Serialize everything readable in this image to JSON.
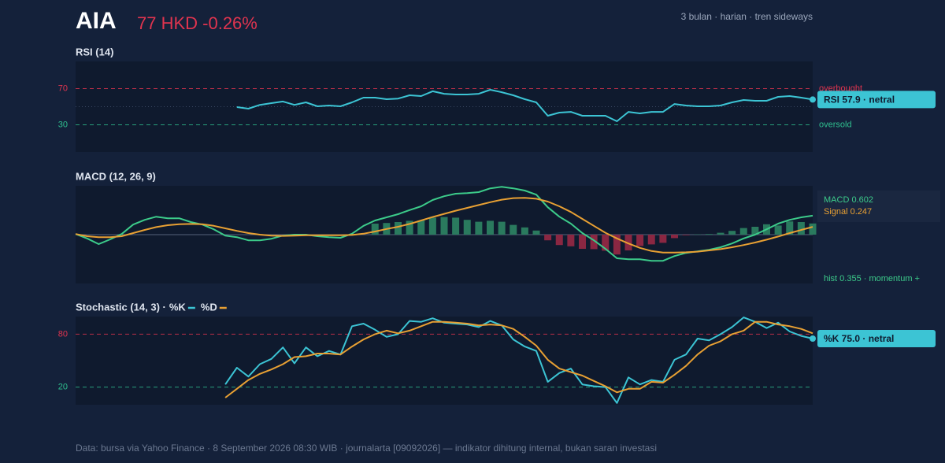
{
  "header": {
    "ticker": "AIA",
    "quote": "77 HKD -0.26%",
    "subtitle": "3 bulan · harian · tren sideways"
  },
  "chart_data": [
    {
      "type": "line",
      "title": "RSI (14)",
      "ylim": [
        0,
        100
      ],
      "yticks": [
        30,
        70
      ],
      "midline": 50,
      "reference_lines": [
        {
          "value": 70,
          "label": "overbought",
          "color": "#e0344f"
        },
        {
          "value": 30,
          "label": "oversold",
          "color": "#2fbf8f"
        }
      ],
      "series": [
        {
          "color": "#3cc4d4",
          "values": [
            null,
            null,
            null,
            null,
            null,
            null,
            null,
            null,
            null,
            null,
            null,
            null,
            null,
            null,
            49.6,
            47.8,
            52,
            53.9,
            55.7,
            52,
            54.8,
            50.4,
            51.3,
            50.4,
            54.8,
            60,
            60,
            58.3,
            59,
            62.6,
            61.7,
            67,
            64.3,
            63.5,
            63.5,
            64.3,
            68.7,
            66,
            62.6,
            58.3,
            54.8,
            40,
            43.5,
            44.3,
            40,
            40,
            40,
            33.9,
            44.3,
            42.6,
            44.3,
            44.3,
            53,
            51.3,
            50.4,
            50.4,
            51.3,
            54.8,
            57.4,
            56.5,
            56.5,
            60.9,
            61.7,
            60,
            57.9
          ]
        }
      ],
      "badge": "RSI 57.9 · netral"
    },
    {
      "type": "line",
      "title": "MACD (12, 26, 9)",
      "ylim": [
        -1.55,
        1.55
      ],
      "midline": 0,
      "series": [
        {
          "name": "MACD",
          "color": "#3ccb8a",
          "values": [
            0.02,
            -0.12,
            -0.3,
            -0.15,
            0.02,
            0.32,
            0.47,
            0.57,
            0.52,
            0.52,
            0.4,
            0.32,
            0.17,
            -0.03,
            -0.08,
            -0.18,
            -0.18,
            -0.13,
            -0.03,
            0,
            0,
            -0.05,
            -0.08,
            -0.1,
            0.03,
            0.28,
            0.45,
            0.55,
            0.65,
            0.78,
            0.9,
            1.1,
            1.22,
            1.3,
            1.32,
            1.35,
            1.47,
            1.52,
            1.47,
            1.4,
            1.27,
            0.87,
            0.57,
            0.35,
            0.05,
            -0.18,
            -0.45,
            -0.75,
            -0.78,
            -0.78,
            -0.83,
            -0.83,
            -0.68,
            -0.58,
            -0.53,
            -0.48,
            -0.4,
            -0.28,
            -0.12,
            0,
            0.17,
            0.35,
            0.47,
            0.55,
            0.602
          ]
        },
        {
          "name": "Signal",
          "color": "#e8a033",
          "values": [
            0.02,
            -0.05,
            -0.08,
            -0.08,
            -0.05,
            0.05,
            0.15,
            0.24,
            0.3,
            0.33,
            0.34,
            0.33,
            0.28,
            0.2,
            0.12,
            0.05,
            0.0,
            -0.03,
            -0.04,
            -0.03,
            -0.02,
            -0.02,
            -0.02,
            -0.02,
            -0.01,
            0.03,
            0.1,
            0.18,
            0.25,
            0.34,
            0.45,
            0.56,
            0.66,
            0.76,
            0.85,
            0.94,
            1.03,
            1.11,
            1.16,
            1.17,
            1.14,
            1.05,
            0.9,
            0.72,
            0.5,
            0.28,
            0.06,
            -0.12,
            -0.28,
            -0.42,
            -0.52,
            -0.57,
            -0.57,
            -0.56,
            -0.54,
            -0.5,
            -0.46,
            -0.4,
            -0.33,
            -0.25,
            -0.16,
            -0.06,
            0.05,
            0.15,
            0.247
          ]
        }
      ],
      "histogram": {
        "positive_color": "#2a7a5e",
        "negative_color": "#8a2742",
        "values": [
          null,
          null,
          null,
          null,
          null,
          null,
          null,
          null,
          null,
          null,
          null,
          null,
          null,
          null,
          null,
          null,
          null,
          null,
          null,
          null,
          null,
          null,
          null,
          null,
          null,
          null,
          0.35,
          0.37,
          0.4,
          0.44,
          0.45,
          0.54,
          0.56,
          0.54,
          0.47,
          0.41,
          0.44,
          0.41,
          0.31,
          0.23,
          0.13,
          -0.18,
          -0.33,
          -0.37,
          -0.45,
          -0.46,
          -0.51,
          -0.63,
          -0.5,
          -0.36,
          -0.31,
          -0.26,
          -0.11,
          -0.02,
          0.01,
          0.02,
          0.06,
          0.12,
          0.21,
          0.25,
          0.33,
          0.29,
          0.42,
          0.4,
          0.355
        ]
      },
      "legend_labels": [
        "MACD 0.602",
        "Signal 0.247"
      ],
      "note": "hist 0.355 · momentum +"
    },
    {
      "type": "line",
      "title": "Stochastic (14, 3) ·",
      "ylim": [
        0,
        100
      ],
      "yticks": [
        20,
        80
      ],
      "reference_lines": [
        {
          "value": 80,
          "color": "#e0344f"
        },
        {
          "value": 20,
          "color": "#2fbf8f"
        }
      ],
      "series": [
        {
          "name": "%K",
          "color": "#3cc4d4",
          "values": [
            null,
            null,
            null,
            null,
            null,
            null,
            null,
            null,
            null,
            null,
            null,
            null,
            null,
            23,
            42,
            32,
            46,
            52,
            65,
            47,
            65,
            55,
            61,
            57,
            89,
            92,
            85,
            77,
            80,
            95,
            94,
            98,
            93,
            92,
            91,
            88,
            95,
            90,
            74,
            66,
            61,
            26,
            36,
            41,
            23,
            21,
            20,
            2,
            31,
            23,
            28,
            26,
            51,
            57,
            75,
            73,
            80,
            88,
            99,
            94,
            87,
            93,
            83,
            78,
            75
          ]
        },
        {
          "name": "%D",
          "color": "#e8a033",
          "values": [
            null,
            null,
            null,
            null,
            null,
            null,
            null,
            null,
            null,
            null,
            null,
            null,
            null,
            8,
            18,
            28,
            35,
            40,
            46,
            54,
            55,
            58,
            58,
            57,
            66,
            74,
            80,
            84,
            81,
            84,
            89,
            94,
            94,
            93,
            92,
            90,
            91,
            90,
            86,
            77,
            67,
            51,
            41,
            37,
            33,
            27,
            21,
            14,
            18,
            18,
            26,
            25,
            34,
            44,
            57,
            67,
            72,
            80,
            84,
            94,
            94,
            91,
            89,
            86,
            81
          ]
        }
      ],
      "badge": "%K 75.0 · netral"
    }
  ],
  "footer": "Data: bursa via Yahoo Finance · 8 September 2026 08:30 WIB · journalarta [09092026] — indikator dihitung internal, bukan saran investasi"
}
